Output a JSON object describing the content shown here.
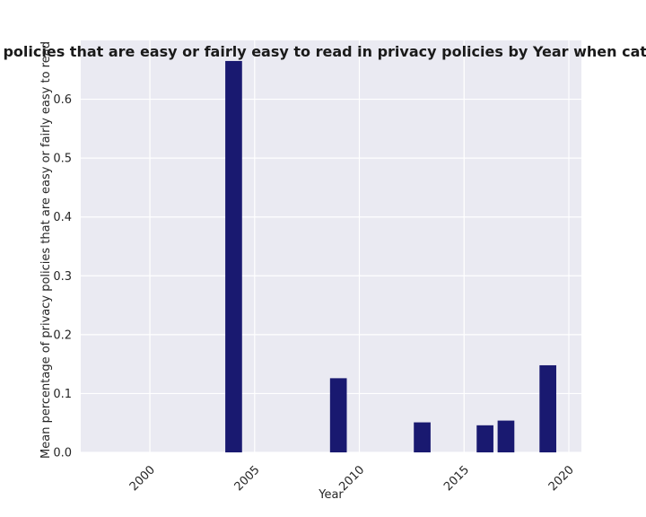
{
  "chart_data": {
    "type": "bar",
    "title": "privacy policies that are easy or fairly easy to read in privacy policies by Year when categories",
    "xlabel": "Year",
    "ylabel": "Mean percentage of privacy policies that are easy or fairly easy to read",
    "x": [
      2004,
      2009,
      2013,
      2016,
      2017,
      2019
    ],
    "values": [
      0.665,
      0.126,
      0.051,
      0.046,
      0.054,
      0.148
    ],
    "xlim": [
      1996.7,
      2020.6
    ],
    "ylim": [
      0,
      0.7
    ],
    "xticks": [
      "2000",
      "2005",
      "2010",
      "2015",
      "2020"
    ],
    "yticks": [
      "0.0",
      "0.1",
      "0.2",
      "0.3",
      "0.4",
      "0.5",
      "0.6"
    ],
    "bar_color": "#191970",
    "background_color": "#eaeaf2",
    "grid": true
  }
}
